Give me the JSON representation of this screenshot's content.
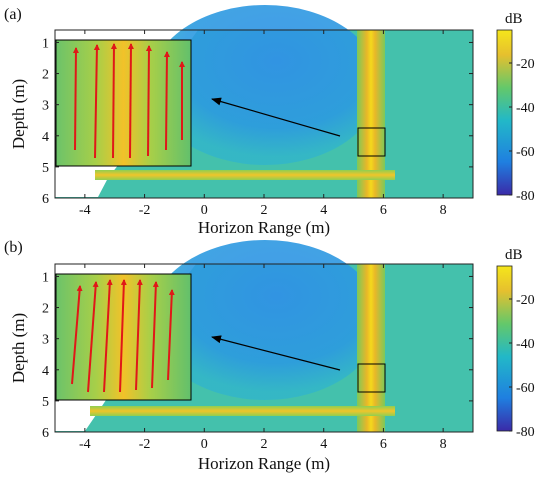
{
  "figure": {
    "panels": [
      {
        "label": "(a)",
        "xlabel": "Horizon Range (m)",
        "ylabel": "Depth (m)",
        "colorbar_label": "dB"
      },
      {
        "label": "(b)",
        "xlabel": "Horizon Range (m)",
        "ylabel": "Depth (m)",
        "colorbar_label": "dB"
      }
    ]
  },
  "chart_data": [
    {
      "type": "heatmap",
      "panel": "(a)",
      "title": "",
      "xlabel": "Horizon Range (m)",
      "ylabel": "Depth (m)",
      "xlim": [
        -5,
        9
      ],
      "ylim": [
        0.6,
        6
      ],
      "y_reversed": true,
      "xticks": [
        -4,
        -2,
        0,
        2,
        4,
        6,
        8
      ],
      "yticks": [
        1,
        2,
        3,
        4,
        5,
        6
      ],
      "colorbar": {
        "label": "dB",
        "min": -80,
        "max": -5,
        "ticks": [
          -20,
          -40,
          -60,
          -80
        ],
        "colormap": [
          "#3a2aa8",
          "#1f7fe0",
          "#22b8c8",
          "#64c86a",
          "#e6c02e",
          "#f5e61b"
        ]
      },
      "features": {
        "background_level_db": -40,
        "shadow_region_level_db": -55,
        "surface_reflection": {
          "depth_m": 5.3,
          "from_x_m": -4,
          "to_x_m": 7,
          "level_db": -15
        },
        "vertical_plume": {
          "x_m": 5.8,
          "from_depth_m": 0.7,
          "to_depth_m": 6,
          "level_db": -10
        },
        "zoom_box": {
          "x_range_m": [
            5.4,
            6.1
          ],
          "depth_range_m": [
            3.7,
            4.6
          ]
        },
        "inset_arrows_direction": "up"
      }
    },
    {
      "type": "heatmap",
      "panel": "(b)",
      "title": "",
      "xlabel": "Horizon Range (m)",
      "ylabel": "Depth (m)",
      "xlim": [
        -5,
        9
      ],
      "ylim": [
        0.6,
        6
      ],
      "y_reversed": true,
      "xticks": [
        -4,
        -2,
        0,
        2,
        4,
        6,
        8
      ],
      "yticks": [
        1,
        2,
        3,
        4,
        5,
        6
      ],
      "colorbar": {
        "label": "dB",
        "min": -80,
        "max": -5,
        "ticks": [
          -20,
          -40,
          -60,
          -80
        ],
        "colormap": [
          "#3a2aa8",
          "#1f7fe0",
          "#22b8c8",
          "#64c86a",
          "#e6c02e",
          "#f5e61b"
        ]
      },
      "features": {
        "background_level_db": -40,
        "shadow_region_level_db": -55,
        "surface_reflection": {
          "depth_m": 5.4,
          "from_x_m": -4,
          "to_x_m": 7,
          "level_db": -15
        },
        "vertical_plume": {
          "x_m": 5.8,
          "from_depth_m": 0.7,
          "to_depth_m": 6,
          "level_db": -10
        },
        "zoom_box": {
          "x_range_m": [
            5.4,
            6.1
          ],
          "depth_range_m": [
            3.7,
            4.6
          ]
        },
        "inset_arrows_direction": "up"
      }
    }
  ]
}
